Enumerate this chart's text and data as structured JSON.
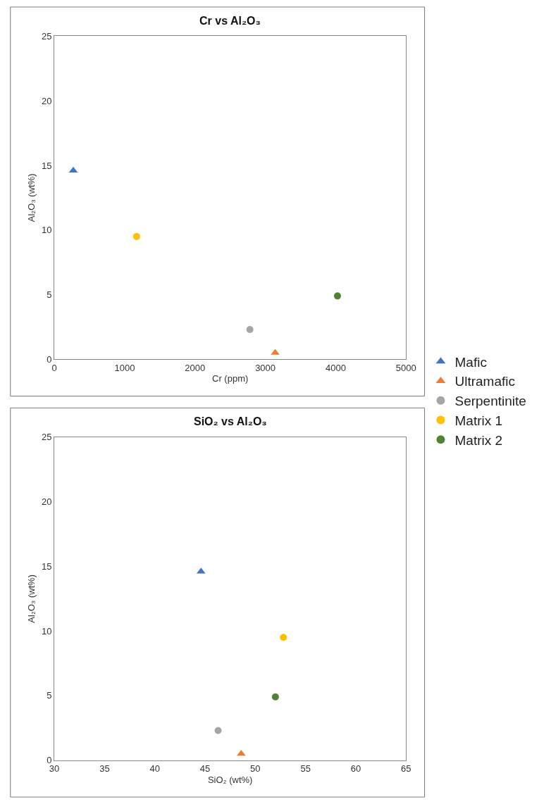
{
  "chart_data": [
    {
      "type": "scatter",
      "title": "Cr vs Al₂O₃",
      "xlabel": "Cr (ppm)",
      "ylabel": "Al₂O₃ (wt%)",
      "xlim": [
        0,
        5000
      ],
      "xticks": [
        0,
        1000,
        2000,
        3000,
        4000,
        5000
      ],
      "ylim": [
        0,
        25
      ],
      "yticks": [
        0,
        5,
        10,
        15,
        20,
        25
      ],
      "legend": "right",
      "series": [
        {
          "name": "Mafic",
          "color": "#4472c4",
          "marker": "triangle",
          "x": [
            270
          ],
          "values": [
            14.6
          ]
        },
        {
          "name": "Ultramafic",
          "color": "#ed7d31",
          "marker": "triangle",
          "x": [
            3140
          ],
          "values": [
            0.5
          ]
        },
        {
          "name": "Serpentinite",
          "color": "#a5a5a5",
          "marker": "circle",
          "x": [
            2780
          ],
          "values": [
            2.3
          ]
        },
        {
          "name": "Matrix 1",
          "color": "#ffc000",
          "marker": "circle",
          "x": [
            1170
          ],
          "values": [
            9.5
          ]
        },
        {
          "name": "Matrix 2",
          "color": "#548235",
          "marker": "circle",
          "x": [
            4025
          ],
          "values": [
            4.9
          ]
        }
      ]
    },
    {
      "type": "scatter",
      "title": "SiO₂ vs Al₂O₃",
      "xlabel": "SiO₂ (wt%)",
      "ylabel": "Al₂O₃ (wt%)",
      "xlim": [
        30,
        65
      ],
      "xticks": [
        30,
        35,
        40,
        45,
        50,
        55,
        60,
        65
      ],
      "ylim": [
        0,
        25
      ],
      "yticks": [
        0,
        5,
        10,
        15,
        20,
        25
      ],
      "series": [
        {
          "color": "#4472c4",
          "marker": "triangle",
          "x": [
            44.6
          ],
          "values": [
            14.6
          ]
        },
        {
          "color": "#ed7d31",
          "marker": "triangle",
          "x": [
            48.6
          ],
          "values": [
            0.5
          ]
        },
        {
          "color": "#a5a5a5",
          "marker": "circle",
          "x": [
            46.3
          ],
          "values": [
            2.3
          ]
        },
        {
          "color": "#ffc000",
          "marker": "circle",
          "x": [
            52.8
          ],
          "values": [
            9.5
          ]
        },
        {
          "color": "#548235",
          "marker": "circle",
          "x": [
            52.0
          ],
          "values": [
            4.9
          ]
        }
      ]
    }
  ]
}
